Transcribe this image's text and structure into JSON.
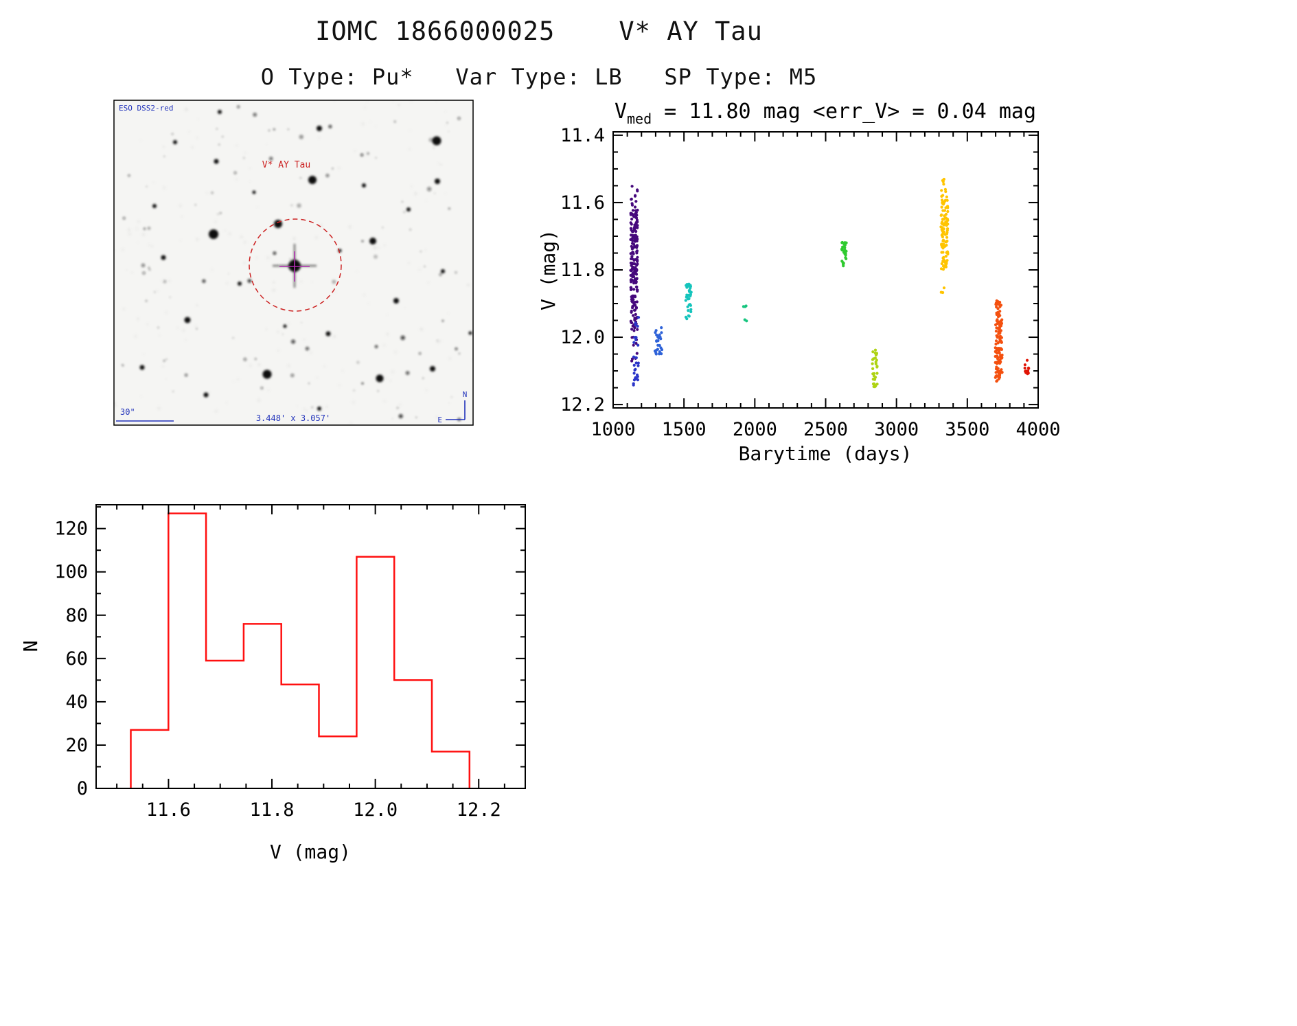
{
  "title": "IOMC 1866000025    V* AY Tau",
  "subtitle": "O Type: Pu*   Var Type: LB   SP Type: M5",
  "finder": {
    "survey_label": "ESO DSS2-red",
    "target_label": "V* AY Tau",
    "scale_label": "30\"",
    "fov_label": "3.448' x 3.057'",
    "compass": {
      "north": "N",
      "east": "E"
    },
    "colors": {
      "annotation_blue": "#2233bb",
      "annotation_red": "#cc2222",
      "crosshair_magenta": "#b02fb0",
      "aperture_circle_red": "#cc2222"
    }
  },
  "chart_data": [
    {
      "id": "lightcurve",
      "type": "scatter",
      "title": {
        "prefix": "V",
        "subscript": "med",
        "suffix": " = 11.80 mag <err_V> = 0.04 mag"
      },
      "xlabel": "Barytime (days)",
      "ylabel": "V (mag)",
      "xlim": [
        1000,
        4000
      ],
      "ylim": [
        11.39,
        12.21
      ],
      "y_inverted": true,
      "xticks": [
        "1000",
        "1500",
        "2000",
        "2500",
        "3000",
        "3500",
        "4000"
      ],
      "yticks": [
        "11.4",
        "11.6",
        "11.8",
        "12.0",
        "12.2"
      ],
      "x_minor_step": 100,
      "y_minor_step": 0.05,
      "grid": false,
      "clusters": [
        {
          "barytime": 1148,
          "x_jitter": 5,
          "color": "#45087c",
          "strips": [
            [
              11.55,
              11.63,
              14
            ],
            [
              11.63,
              11.82,
              120
            ],
            [
              11.82,
              11.98,
              75
            ],
            [
              11.98,
              12.08,
              10
            ]
          ]
        },
        {
          "barytime": 1163,
          "x_jitter": 4,
          "color": "#2a35c8",
          "strips": [
            [
              11.93,
              12.03,
              10
            ],
            [
              12.04,
              12.15,
              20
            ]
          ]
        },
        {
          "barytime": 1320,
          "x_jitter": 5,
          "color": "#2e62d8",
          "strips": [
            [
              11.97,
              12.05,
              26
            ]
          ]
        },
        {
          "barytime": 1532,
          "x_jitter": 4,
          "color": "#14c4bc",
          "strips": [
            [
              11.84,
              11.92,
              30
            ],
            [
              11.92,
              11.95,
              5
            ]
          ]
        },
        {
          "barytime": 1930,
          "x_jitter": 3,
          "color": "#17c57f",
          "strips": [
            [
              11.905,
              11.92,
              3
            ],
            [
              11.945,
              11.955,
              2
            ]
          ]
        },
        {
          "barytime": 2632,
          "x_jitter": 4,
          "color": "#2fca2f",
          "strips": [
            [
              11.72,
              11.79,
              30
            ]
          ]
        },
        {
          "barytime": 2845,
          "x_jitter": 4,
          "color": "#aed313",
          "strips": [
            [
              12.04,
              12.15,
              32
            ]
          ]
        },
        {
          "barytime": 3338,
          "x_jitter": 5,
          "color": "#ffc400",
          "strips": [
            [
              11.53,
              11.59,
              10
            ],
            [
              11.59,
              11.8,
              100
            ],
            [
              11.85,
              11.87,
              3
            ]
          ]
        },
        {
          "barytime": 3722,
          "x_jitter": 5,
          "color": "#f4500f",
          "strips": [
            [
              11.88,
              11.95,
              22
            ],
            [
              11.95,
              12.13,
              100
            ]
          ]
        },
        {
          "barytime": 3920,
          "x_jitter": 3,
          "color": "#e01505",
          "strips": [
            [
              12.06,
              12.12,
              14
            ]
          ]
        }
      ]
    },
    {
      "id": "vhist",
      "type": "histogram",
      "xlabel": "V (mag)",
      "ylabel": "N",
      "xlim": [
        11.46,
        12.29
      ],
      "ylim": [
        0,
        131
      ],
      "xticks": [
        "11.6",
        "11.8",
        "12.0",
        "12.2"
      ],
      "yticks": [
        "0",
        "20",
        "40",
        "60",
        "80",
        "100",
        "120"
      ],
      "x_minor_step": 0.05,
      "y_minor_step": 10,
      "grid": false,
      "bin_start": 11.527,
      "bin_width": 0.0728,
      "counts": [
        27,
        127,
        59,
        76,
        48,
        24,
        107,
        50,
        17
      ],
      "color": "#ff1010"
    }
  ]
}
